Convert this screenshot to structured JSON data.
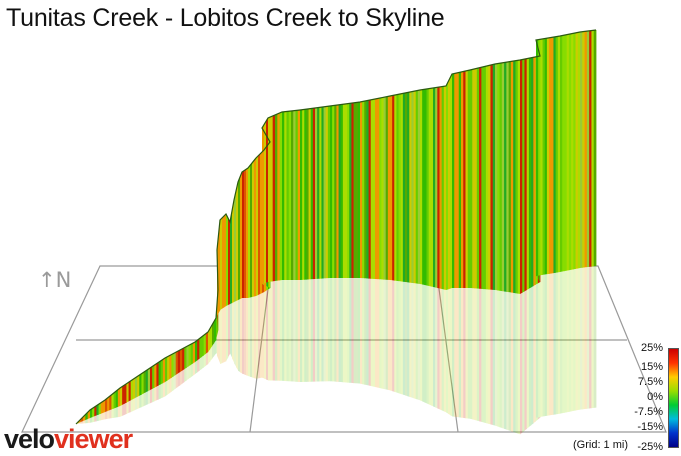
{
  "title": "Tunitas Creek - Lobitos Creek to Skyline",
  "north_label": "↑N",
  "brand": {
    "part1": "velo",
    "part2": "viewer"
  },
  "legend": {
    "ticks": [
      "25%",
      "15%",
      "7.5%",
      "0%",
      "-7.5%",
      "-15%",
      "-25%"
    ],
    "grid_note": "(Grid: 1 mi)",
    "colors": [
      "#cc0000",
      "#ff3300",
      "#ffcc00",
      "#99dd00",
      "#00cc33",
      "#00bbdd",
      "#0033cc",
      "#000088"
    ]
  },
  "profile_colors": [
    "#66cc00",
    "#88dd00",
    "#33bb00",
    "#aadd00",
    "#cccc00",
    "#ee9900",
    "#cc2200",
    "#55aa00",
    "#99cc33",
    "#22aa22"
  ]
}
